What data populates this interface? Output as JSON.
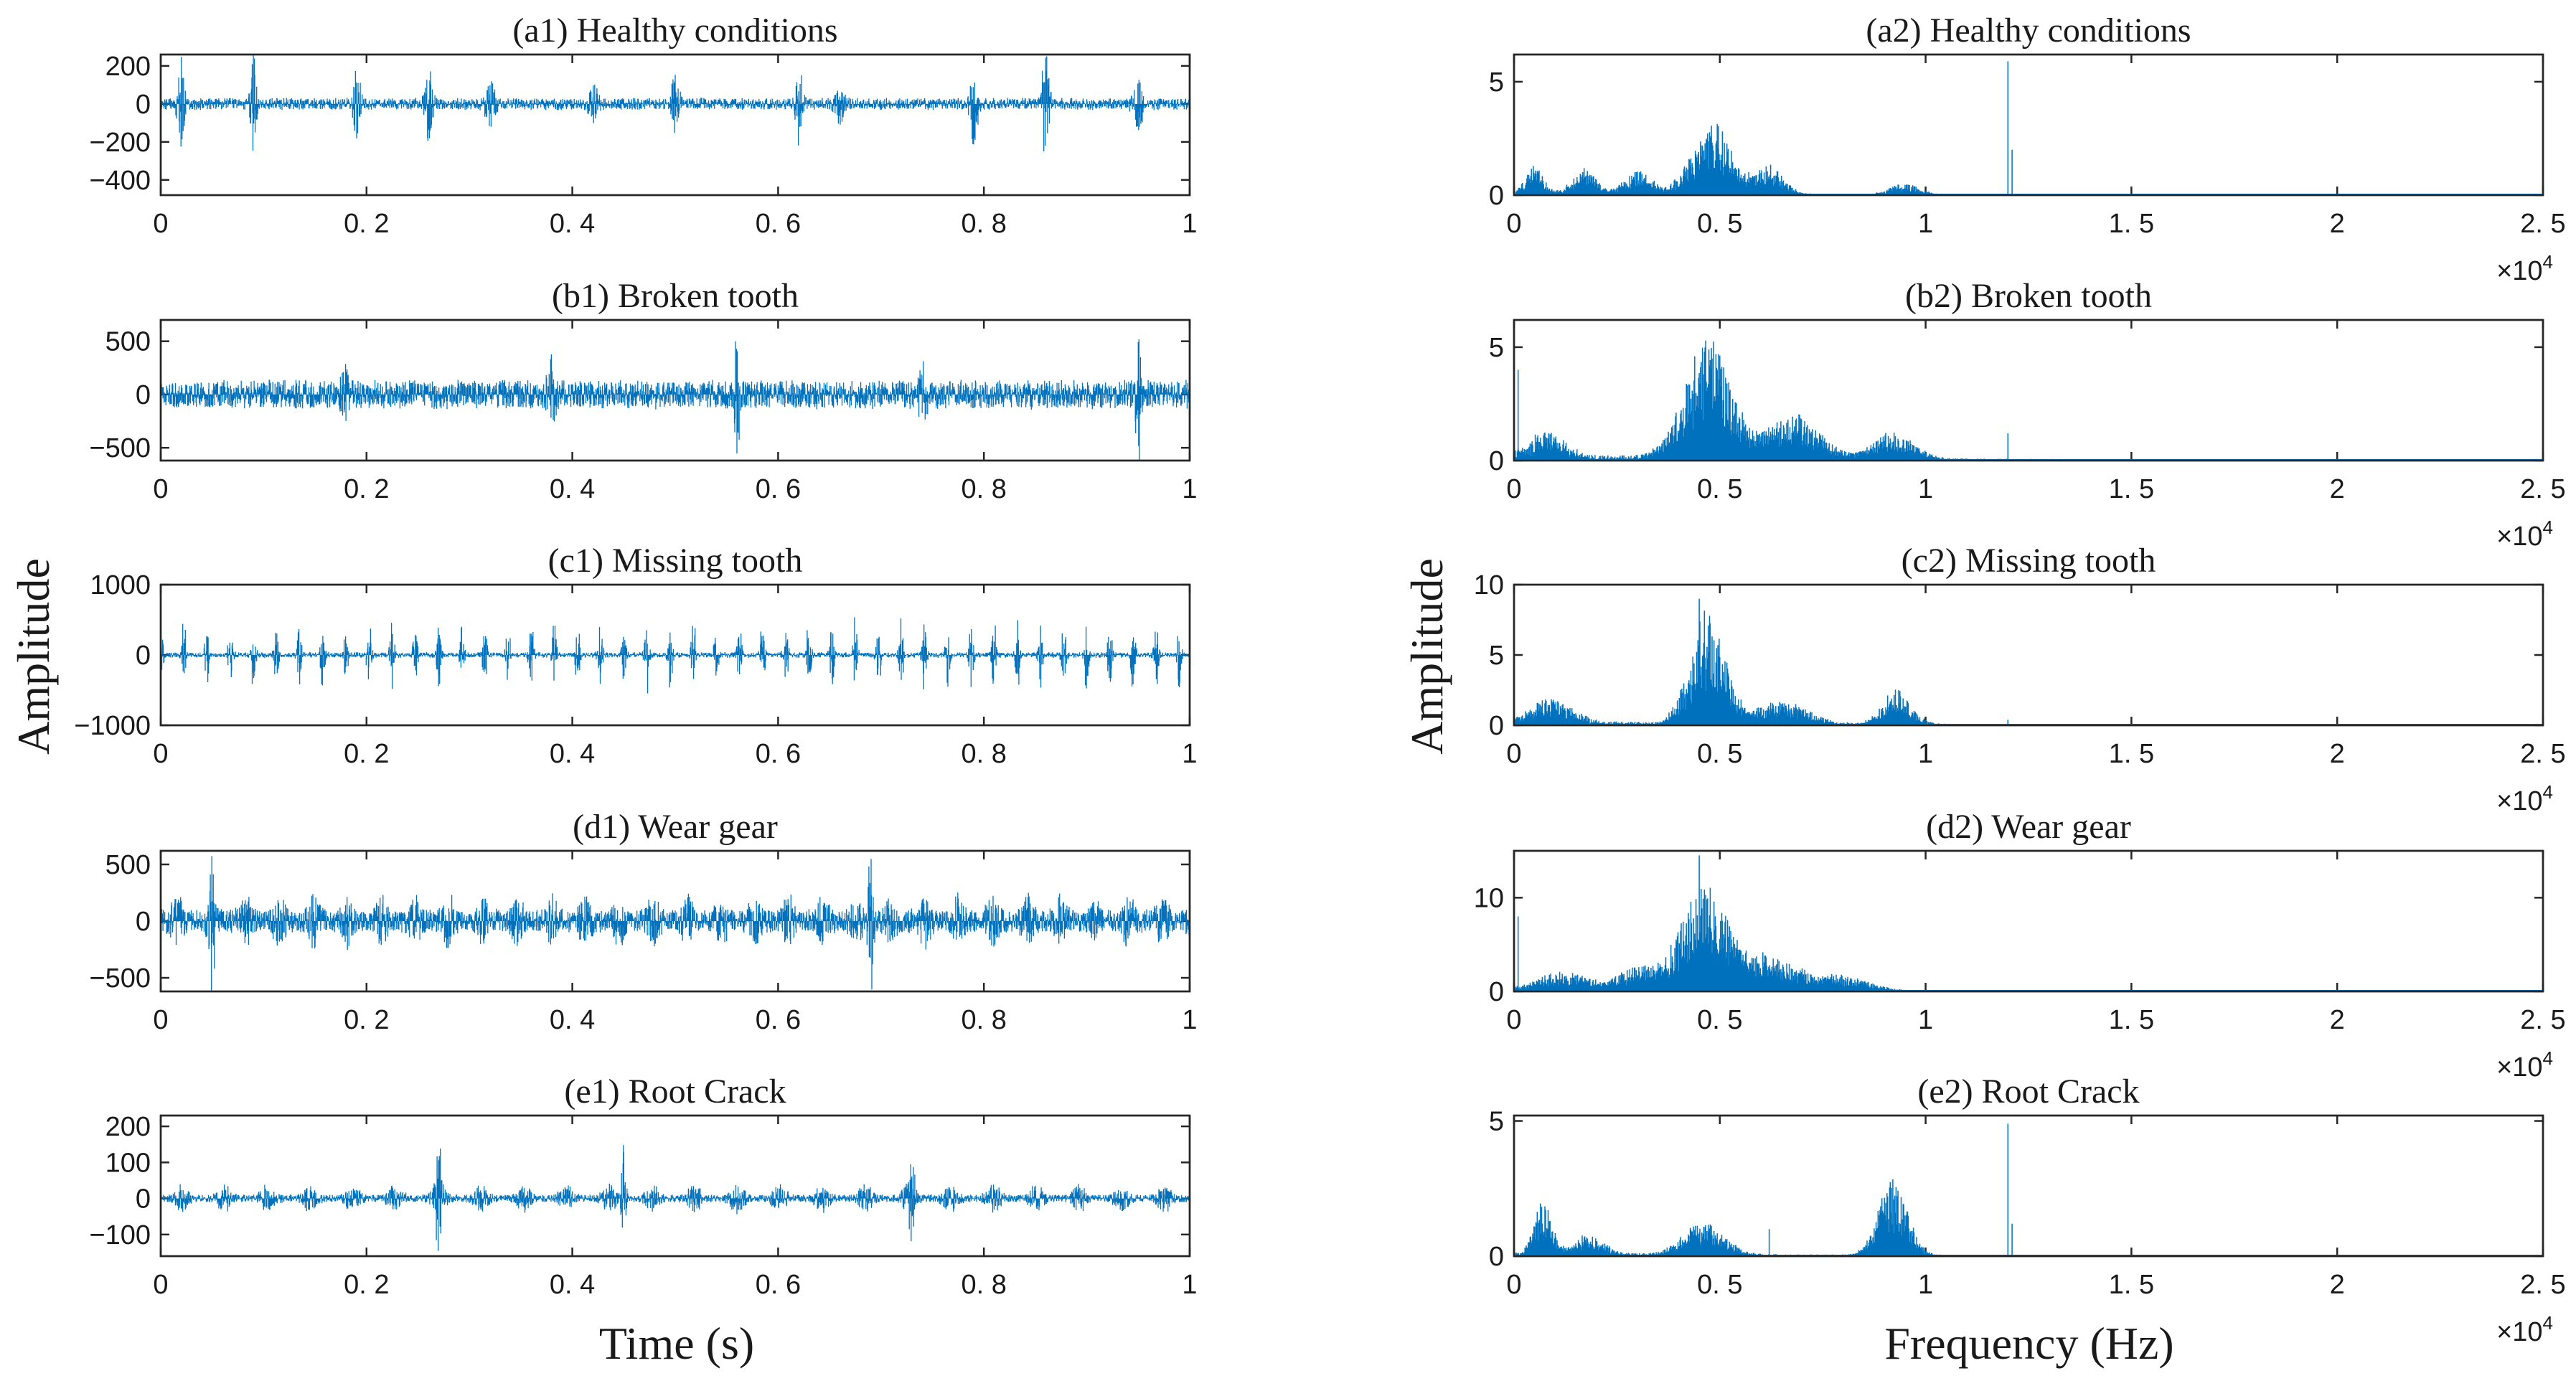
{
  "figure": {
    "left_axis_label": "Amplitude",
    "right_axis_label": "Amplitude",
    "left_xlabel": "Time (s)",
    "right_xlabel": "Frequency (Hz)",
    "line_color": "#0072BD",
    "multiplier_base": "×10",
    "multiplier_exp": "4"
  },
  "chart_data": [
    {
      "id": "a1",
      "type": "line",
      "title": "(a1) Healthy conditions",
      "xlim": [
        0,
        1
      ],
      "ylim": [
        -480,
        260
      ],
      "xticks": [
        0,
        0.2,
        0.4,
        0.6,
        0.8,
        1
      ],
      "xtick_labels": [
        "0",
        "0. 2",
        "0. 4",
        "0. 6",
        "0. 8",
        "1"
      ],
      "yticks": [
        -400,
        -200,
        0,
        200
      ],
      "ytick_labels": [
        "−400",
        "−200",
        "0",
        "200"
      ],
      "signal": {
        "kind": "time",
        "noise": 28,
        "events": [
          [
            0.02,
            240,
            0.004
          ],
          [
            0.09,
            280,
            0.003
          ],
          [
            0.19,
            250,
            0.004
          ],
          [
            0.26,
            230,
            0.004
          ],
          [
            0.32,
            120,
            0.006
          ],
          [
            0.42,
            110,
            0.006
          ],
          [
            0.5,
            200,
            0.004
          ],
          [
            0.62,
            210,
            0.004
          ],
          [
            0.66,
            130,
            0.005
          ],
          [
            0.79,
            260,
            0.004
          ],
          [
            0.86,
            300,
            0.004
          ],
          [
            0.95,
            160,
            0.005
          ]
        ]
      }
    },
    {
      "id": "a2",
      "type": "line",
      "title": "(a2) Healthy conditions",
      "xlim": [
        0,
        25000
      ],
      "ylim": [
        0,
        6.2
      ],
      "xticks": [
        0,
        5000,
        10000,
        15000,
        20000,
        25000
      ],
      "xtick_labels": [
        "0",
        "0. 5",
        "1",
        "1. 5",
        "2",
        "2. 5"
      ],
      "yticks": [
        0,
        5
      ],
      "ytick_labels": [
        "0",
        "5"
      ],
      "multiplier": true,
      "signal": {
        "kind": "spectrum",
        "noise": 0.12,
        "bumps": [
          [
            500,
            1.0,
            300
          ],
          [
            1700,
            0.9,
            400
          ],
          [
            3000,
            0.8,
            500
          ],
          [
            4800,
            2.6,
            700
          ],
          [
            6200,
            1.0,
            500
          ],
          [
            9500,
            0.4,
            500
          ]
        ],
        "spikes": [
          [
            12000,
            5.9
          ],
          [
            12100,
            2.0
          ]
        ]
      }
    },
    {
      "id": "b1",
      "type": "line",
      "title": "(b1) Broken tooth",
      "xlim": [
        0,
        1
      ],
      "ylim": [
        -620,
        700
      ],
      "xticks": [
        0,
        0.2,
        0.4,
        0.6,
        0.8,
        1
      ],
      "xtick_labels": [
        "0",
        "0. 2",
        "0. 4",
        "0. 6",
        "0. 8",
        "1"
      ],
      "yticks": [
        -500,
        0,
        500
      ],
      "ytick_labels": [
        "−500",
        "0",
        "500"
      ],
      "signal": {
        "kind": "time",
        "noise": 120,
        "events": [
          [
            0.56,
            620,
            0.003
          ],
          [
            0.95,
            650,
            0.003
          ],
          [
            0.18,
            260,
            0.005
          ],
          [
            0.38,
            300,
            0.005
          ],
          [
            0.74,
            280,
            0.005
          ]
        ]
      }
    },
    {
      "id": "b2",
      "type": "line",
      "title": "(b2) Broken tooth",
      "xlim": [
        0,
        25000
      ],
      "ylim": [
        0,
        6.2
      ],
      "xticks": [
        0,
        5000,
        10000,
        15000,
        20000,
        25000
      ],
      "xtick_labels": [
        "0",
        "0. 5",
        "1",
        "1. 5",
        "2",
        "2. 5"
      ],
      "yticks": [
        0,
        5
      ],
      "ytick_labels": [
        "0",
        "5"
      ],
      "multiplier": true,
      "signal": {
        "kind": "spectrum",
        "noise": 0.3,
        "bumps": [
          [
            800,
            0.9,
            600
          ],
          [
            4700,
            4.4,
            800
          ],
          [
            6800,
            1.6,
            900
          ],
          [
            9200,
            1.0,
            700
          ]
        ],
        "spikes": [
          [
            100,
            4.0
          ],
          [
            12000,
            1.2
          ]
        ]
      }
    },
    {
      "id": "c1",
      "type": "line",
      "title": "(c1) Missing tooth",
      "xlim": [
        0,
        1
      ],
      "ylim": [
        -1000,
        1000
      ],
      "xticks": [
        0,
        0.2,
        0.4,
        0.6,
        0.8,
        1
      ],
      "xtick_labels": [
        "0",
        "0. 2",
        "0. 4",
        "0. 6",
        "0. 8",
        "1"
      ],
      "yticks": [
        -1000,
        0,
        1000
      ],
      "ytick_labels": [
        "−1000",
        "0",
        "1000"
      ],
      "signal": {
        "kind": "time",
        "noise": 35,
        "period": 0.0225,
        "pulse": 550,
        "pulse_width": 0.0025
      }
    },
    {
      "id": "c2",
      "type": "line",
      "title": "(c2) Missing tooth",
      "xlim": [
        0,
        25000
      ],
      "ylim": [
        0,
        10
      ],
      "xticks": [
        0,
        5000,
        10000,
        15000,
        20000,
        25000
      ],
      "xtick_labels": [
        "0",
        "0. 5",
        "1",
        "1. 5",
        "2",
        "2. 5"
      ],
      "yticks": [
        0,
        5,
        10
      ],
      "ytick_labels": [
        "0",
        "5",
        "10"
      ],
      "multiplier": true,
      "signal": {
        "kind": "spectrum",
        "noise": 0.35,
        "bumps": [
          [
            900,
            1.4,
            700
          ],
          [
            4700,
            6.5,
            600
          ],
          [
            6500,
            1.3,
            900
          ],
          [
            9300,
            2.0,
            500
          ]
        ],
        "spikes": [
          [
            4500,
            9.0
          ],
          [
            12000,
            0.4
          ]
        ]
      }
    },
    {
      "id": "d1",
      "type": "line",
      "title": "(d1) Wear gear",
      "xlim": [
        0,
        1
      ],
      "ylim": [
        -620,
        620
      ],
      "xticks": [
        0,
        0.2,
        0.4,
        0.6,
        0.8,
        1
      ],
      "xtick_labels": [
        "0",
        "0. 2",
        "0. 4",
        "0. 6",
        "0. 8",
        "1"
      ],
      "yticks": [
        -500,
        0,
        500
      ],
      "ytick_labels": [
        "−500",
        "0",
        "500"
      ],
      "signal": {
        "kind": "time",
        "noise": 230,
        "mod_period": 0.033,
        "mod_depth": 0.6,
        "events": [
          [
            0.69,
            600,
            0.003
          ],
          [
            0.05,
            560,
            0.003
          ]
        ]
      }
    },
    {
      "id": "d2",
      "type": "line",
      "title": "(d2) Wear gear",
      "xlim": [
        0,
        25000
      ],
      "ylim": [
        0,
        15
      ],
      "xticks": [
        0,
        5000,
        10000,
        15000,
        20000,
        25000
      ],
      "xtick_labels": [
        "0",
        "0. 5",
        "1",
        "1. 5",
        "2",
        "2. 5"
      ],
      "yticks": [
        0,
        10
      ],
      "ytick_labels": [
        "0",
        "10"
      ],
      "multiplier": true,
      "signal": {
        "kind": "spectrum",
        "noise": 0.4,
        "bumps": [
          [
            1200,
            1.6,
            800
          ],
          [
            3000,
            2.0,
            700
          ],
          [
            4600,
            9.0,
            800
          ],
          [
            6200,
            3.0,
            1000
          ],
          [
            8000,
            1.2,
            900
          ]
        ],
        "spikes": [
          [
            4500,
            14.5
          ],
          [
            100,
            8.0
          ]
        ]
      }
    },
    {
      "id": "e1",
      "type": "line",
      "title": "(e1) Root Crack",
      "xlim": [
        0,
        1
      ],
      "ylim": [
        -160,
        230
      ],
      "xticks": [
        0,
        0.2,
        0.4,
        0.6,
        0.8,
        1
      ],
      "xtick_labels": [
        "0",
        "0. 2",
        "0. 4",
        "0. 6",
        "0. 8",
        "1"
      ],
      "yticks": [
        -100,
        0,
        100,
        200
      ],
      "ytick_labels": [
        "−100",
        "0",
        "100",
        "200"
      ],
      "signal": {
        "kind": "time",
        "noise": 38,
        "mod_period": 0.0415,
        "mod_depth": 0.75,
        "events": [
          [
            0.27,
            220,
            0.003
          ],
          [
            0.45,
            150,
            0.003
          ],
          [
            0.73,
            150,
            0.003
          ]
        ]
      }
    },
    {
      "id": "e2",
      "type": "line",
      "title": "(e2) Root Crack",
      "xlim": [
        0,
        25000
      ],
      "ylim": [
        0,
        5.2
      ],
      "xticks": [
        0,
        5000,
        10000,
        15000,
        20000,
        25000
      ],
      "xtick_labels": [
        "0",
        "0. 5",
        "1",
        "1. 5",
        "2",
        "2. 5"
      ],
      "yticks": [
        0,
        5
      ],
      "ytick_labels": [
        "0",
        "5"
      ],
      "multiplier": true,
      "signal": {
        "kind": "spectrum",
        "noise": 0.15,
        "bumps": [
          [
            700,
            1.6,
            300
          ],
          [
            1800,
            0.6,
            500
          ],
          [
            4600,
            1.0,
            700
          ],
          [
            9200,
            2.3,
            500
          ]
        ],
        "spikes": [
          [
            12000,
            4.9
          ],
          [
            12100,
            1.2
          ],
          [
            6200,
            1.0
          ]
        ]
      }
    }
  ]
}
